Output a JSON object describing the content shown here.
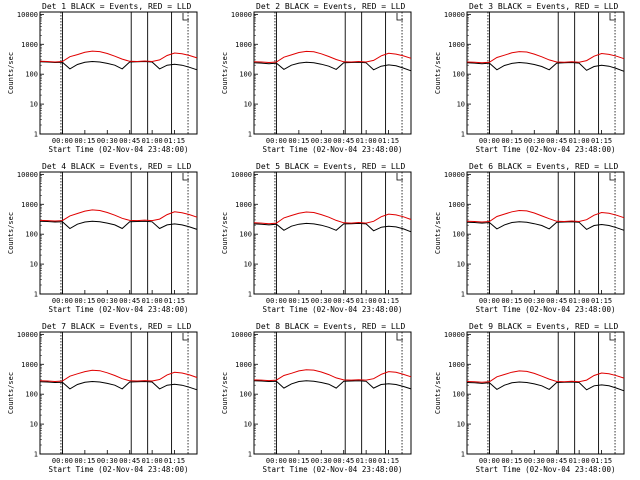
{
  "chart_data": [
    {
      "type": "line",
      "title": "Det 1  BLACK = Events, RED = LLD",
      "xlabel": "Start Time (02-Nov-04 23:48:00)",
      "ylabel": "Counts/sec",
      "x_ticks": [
        "00:00",
        "00:15",
        "00:30",
        "00:45",
        "01:00",
        "01:15"
      ],
      "y_ticks": [
        "1",
        "10",
        "100",
        "1000",
        "10000"
      ],
      "ylim": [
        1,
        12000
      ],
      "log_y": true,
      "series": [
        {
          "color": "#000000",
          "values": [
            260,
            255,
            245,
            250,
            150,
            210,
            250,
            265,
            255,
            230,
            200,
            150,
            255,
            260,
            265,
            255,
            150,
            200,
            215,
            200,
            170,
            140
          ]
        },
        {
          "color": "#e00000",
          "values": [
            270,
            265,
            255,
            265,
            385,
            450,
            540,
            590,
            570,
            490,
            400,
            320,
            270,
            265,
            275,
            265,
            300,
            420,
            510,
            480,
            420,
            350
          ]
        }
      ]
    },
    {
      "type": "line",
      "title": "Det 2  BLACK = Events, RED = LLD",
      "xlabel": "Start Time (02-Nov-04 23:48:00)",
      "ylabel": "Counts/sec",
      "x_ticks": [
        "00:00",
        "00:15",
        "00:30",
        "00:45",
        "01:00",
        "01:15"
      ],
      "y_ticks": [
        "1",
        "10",
        "100",
        "1000",
        "10000"
      ],
      "ylim": [
        1,
        12000
      ],
      "log_y": true,
      "series": [
        {
          "color": "#000000",
          "values": [
            240,
            235,
            225,
            235,
            145,
            200,
            235,
            250,
            240,
            215,
            185,
            145,
            240,
            245,
            250,
            240,
            140,
            185,
            205,
            190,
            160,
            130
          ]
        },
        {
          "color": "#e00000",
          "values": [
            260,
            255,
            245,
            255,
            370,
            440,
            530,
            580,
            560,
            480,
            390,
            310,
            260,
            255,
            265,
            255,
            290,
            410,
            500,
            470,
            410,
            340
          ]
        }
      ]
    },
    {
      "type": "line",
      "title": "Det 3  BLACK = Events, RED = LLD",
      "xlabel": "Start Time (02-Nov-04 23:48:00)",
      "ylabel": "Counts/sec",
      "x_ticks": [
        "00:00",
        "00:15",
        "00:30",
        "00:45",
        "01:00",
        "01:15"
      ],
      "y_ticks": [
        "1",
        "10",
        "100",
        "1000",
        "10000"
      ],
      "ylim": [
        1,
        12000
      ],
      "log_y": true,
      "series": [
        {
          "color": "#000000",
          "values": [
            240,
            235,
            225,
            235,
            140,
            195,
            230,
            245,
            235,
            210,
            180,
            140,
            235,
            240,
            245,
            235,
            135,
            180,
            200,
            185,
            155,
            125
          ]
        },
        {
          "color": "#e00000",
          "values": [
            255,
            250,
            240,
            250,
            360,
            430,
            520,
            570,
            550,
            470,
            380,
            300,
            255,
            250,
            260,
            250,
            285,
            400,
            490,
            460,
            400,
            330
          ]
        }
      ]
    },
    {
      "type": "line",
      "title": "Det 4  BLACK = Events, RED = LLD",
      "xlabel": "Start Time (02-Nov-04 23:48:00)",
      "ylabel": "Counts/sec",
      "x_ticks": [
        "00:00",
        "00:15",
        "00:30",
        "00:45",
        "01:00",
        "01:15"
      ],
      "y_ticks": [
        "1",
        "10",
        "100",
        "1000",
        "10000"
      ],
      "ylim": [
        1,
        12000
      ],
      "log_y": true,
      "series": [
        {
          "color": "#000000",
          "values": [
            270,
            265,
            255,
            260,
            155,
            215,
            255,
            270,
            260,
            235,
            205,
            155,
            260,
            265,
            270,
            260,
            155,
            205,
            220,
            205,
            175,
            145
          ]
        },
        {
          "color": "#e00000",
          "values": [
            290,
            285,
            275,
            285,
            410,
            490,
            590,
            650,
            620,
            530,
            430,
            340,
            290,
            285,
            295,
            285,
            320,
            450,
            560,
            520,
            450,
            370
          ]
        }
      ]
    },
    {
      "type": "line",
      "title": "Det 5  BLACK = Events, RED = LLD",
      "xlabel": "Start Time (02-Nov-04 23:48:00)",
      "ylabel": "Counts/sec",
      "x_ticks": [
        "00:00",
        "00:15",
        "00:30",
        "00:45",
        "01:00",
        "01:15"
      ],
      "y_ticks": [
        "1",
        "10",
        "100",
        "1000",
        "10000"
      ],
      "ylim": [
        1,
        12000
      ],
      "log_y": true,
      "series": [
        {
          "color": "#000000",
          "values": [
            220,
            215,
            205,
            215,
            135,
            185,
            215,
            230,
            220,
            200,
            170,
            135,
            220,
            225,
            230,
            220,
            130,
            170,
            185,
            175,
            150,
            120
          ]
        },
        {
          "color": "#e00000",
          "values": [
            240,
            235,
            225,
            235,
            350,
            420,
            500,
            550,
            530,
            450,
            370,
            290,
            240,
            235,
            245,
            235,
            270,
            380,
            470,
            440,
            380,
            310
          ]
        }
      ]
    },
    {
      "type": "line",
      "title": "Det 6  BLACK = Events, RED = LLD",
      "xlabel": "Start Time (02-Nov-04 23:48:00)",
      "ylabel": "Counts/sec",
      "x_ticks": [
        "00:00",
        "00:15",
        "00:30",
        "00:45",
        "01:00",
        "01:15"
      ],
      "y_ticks": [
        "1",
        "10",
        "100",
        "1000",
        "10000"
      ],
      "ylim": [
        1,
        12000
      ],
      "log_y": true,
      "series": [
        {
          "color": "#000000",
          "values": [
            250,
            245,
            235,
            245,
            150,
            205,
            245,
            260,
            250,
            225,
            195,
            150,
            250,
            255,
            260,
            250,
            145,
            195,
            210,
            195,
            165,
            135
          ]
        },
        {
          "color": "#e00000",
          "values": [
            270,
            265,
            255,
            265,
            390,
            470,
            560,
            620,
            600,
            510,
            410,
            330,
            270,
            265,
            275,
            265,
            305,
            430,
            530,
            500,
            430,
            355
          ]
        }
      ]
    },
    {
      "type": "line",
      "title": "Det 7  BLACK = Events, RED = LLD",
      "xlabel": "Start Time (02-Nov-04 23:48:00)",
      "ylabel": "Counts/sec",
      "x_ticks": [
        "00:00",
        "00:15",
        "00:30",
        "00:45",
        "01:00",
        "01:15"
      ],
      "y_ticks": [
        "1",
        "10",
        "100",
        "1000",
        "10000"
      ],
      "ylim": [
        1,
        12000
      ],
      "log_y": true,
      "series": [
        {
          "color": "#000000",
          "values": [
            260,
            255,
            245,
            250,
            150,
            210,
            250,
            265,
            255,
            230,
            200,
            150,
            255,
            260,
            265,
            255,
            150,
            200,
            215,
            200,
            170,
            140
          ]
        },
        {
          "color": "#e00000",
          "values": [
            280,
            275,
            265,
            275,
            400,
            480,
            570,
            630,
            610,
            520,
            420,
            330,
            280,
            275,
            285,
            275,
            310,
            440,
            540,
            510,
            440,
            360
          ]
        }
      ]
    },
    {
      "type": "line",
      "title": "Det 8  BLACK = Events, RED = LLD",
      "xlabel": "Start Time (02-Nov-04 23:48:00)",
      "ylabel": "Counts/sec",
      "x_ticks": [
        "00:00",
        "00:15",
        "00:30",
        "00:45",
        "01:00",
        "01:15"
      ],
      "y_ticks": [
        "1",
        "10",
        "100",
        "1000",
        "10000"
      ],
      "ylim": [
        1,
        12000
      ],
      "log_y": true,
      "series": [
        {
          "color": "#000000",
          "values": [
            280,
            275,
            265,
            270,
            160,
            220,
            265,
            280,
            270,
            245,
            215,
            160,
            270,
            275,
            280,
            270,
            160,
            210,
            225,
            210,
            180,
            150
          ]
        },
        {
          "color": "#e00000",
          "values": [
            300,
            295,
            285,
            295,
            420,
            500,
            600,
            660,
            640,
            550,
            450,
            350,
            300,
            295,
            305,
            295,
            330,
            460,
            570,
            540,
            460,
            380
          ]
        }
      ]
    },
    {
      "type": "line",
      "title": "Det 9  BLACK = Events, RED = LLD",
      "xlabel": "Start Time (02-Nov-04 23:48:00)",
      "ylabel": "Counts/sec",
      "x_ticks": [
        "00:00",
        "00:15",
        "00:30",
        "00:45",
        "01:00",
        "01:15"
      ],
      "y_ticks": [
        "1",
        "10",
        "100",
        "1000",
        "10000"
      ],
      "ylim": [
        1,
        12000
      ],
      "log_y": true,
      "series": [
        {
          "color": "#000000",
          "values": [
            245,
            240,
            230,
            240,
            145,
            200,
            240,
            255,
            245,
            220,
            190,
            145,
            245,
            250,
            255,
            245,
            140,
            190,
            205,
            190,
            160,
            130
          ]
        },
        {
          "color": "#e00000",
          "values": [
            265,
            260,
            250,
            260,
            380,
            455,
            545,
            600,
            580,
            495,
            400,
            320,
            265,
            260,
            270,
            260,
            295,
            420,
            510,
            480,
            415,
            345
          ]
        }
      ]
    }
  ]
}
